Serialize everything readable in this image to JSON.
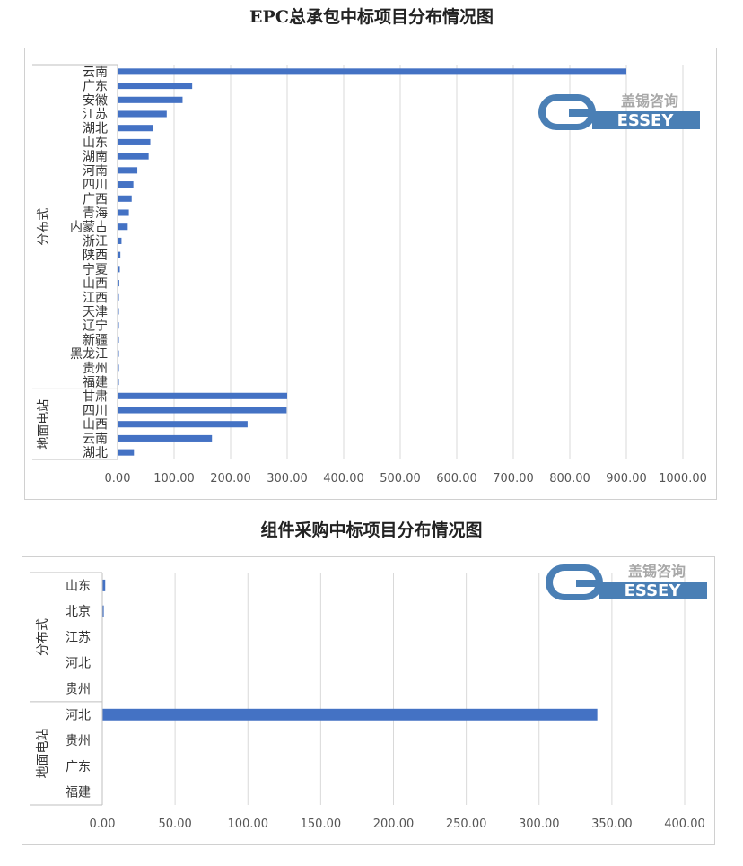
{
  "logo": {
    "cn_text": "盖锡咨询",
    "letter_g": "G",
    "letters": "ESSEY"
  },
  "colors": {
    "bar": "#4472C4",
    "grid": "#d9d9d9",
    "logo_blue": "#4a7fb5",
    "logo_gray": "#a8a8a8"
  },
  "charts": [
    {
      "chart_data": {
        "type": "bar",
        "orientation": "horizontal",
        "title": "EPC总承包中标项目分布情况图",
        "groups": [
          {
            "name": "分布式",
            "categories": [
              "云南",
              "广东",
              "安徽",
              "江苏",
              "湖北",
              "山东",
              "湖南",
              "河南",
              "四川",
              "广西",
              "青海",
              "内蒙古",
              "浙江",
              "陕西",
              "宁夏",
              "山西",
              "江西",
              "天津",
              "辽宁",
              "新疆",
              "黑龙江",
              "贵州",
              "福建"
            ],
            "values": [
              900,
              132,
              115,
              87,
              62,
              58,
              55,
              35,
              28,
              25,
              20,
              18,
              7,
              5,
              4,
              3,
              2,
              2,
              2,
              1,
              1,
              1,
              1
            ]
          },
          {
            "name": "地面电站",
            "categories": [
              "甘肃",
              "四川",
              "山西",
              "云南",
              "湖北"
            ],
            "values": [
              300,
              299,
              230,
              167,
              29
            ]
          }
        ],
        "xlim": [
          0,
          1000
        ],
        "ticks": [
          "0.00",
          "100.00",
          "200.00",
          "300.00",
          "400.00",
          "500.00",
          "600.00",
          "700.00",
          "800.00",
          "900.00",
          "1000.00"
        ],
        "grid": true,
        "legend": "none"
      }
    },
    {
      "chart_data": {
        "type": "bar",
        "orientation": "horizontal",
        "title": "组件采购中标项目分布情况图",
        "groups": [
          {
            "name": "分布式",
            "categories": [
              "山东",
              "北京",
              "江苏",
              "河北",
              "贵州"
            ],
            "values": [
              2,
              1,
              0,
              0,
              0
            ]
          },
          {
            "name": "地面电站",
            "categories": [
              "河北",
              "贵州",
              "广东",
              "福建"
            ],
            "values": [
              340,
              0,
              0,
              0
            ]
          }
        ],
        "xlim": [
          0,
          400
        ],
        "ticks": [
          "0.00",
          "50.00",
          "100.00",
          "150.00",
          "200.00",
          "250.00",
          "300.00",
          "350.00",
          "400.00"
        ],
        "grid": true,
        "legend": "none"
      }
    }
  ]
}
